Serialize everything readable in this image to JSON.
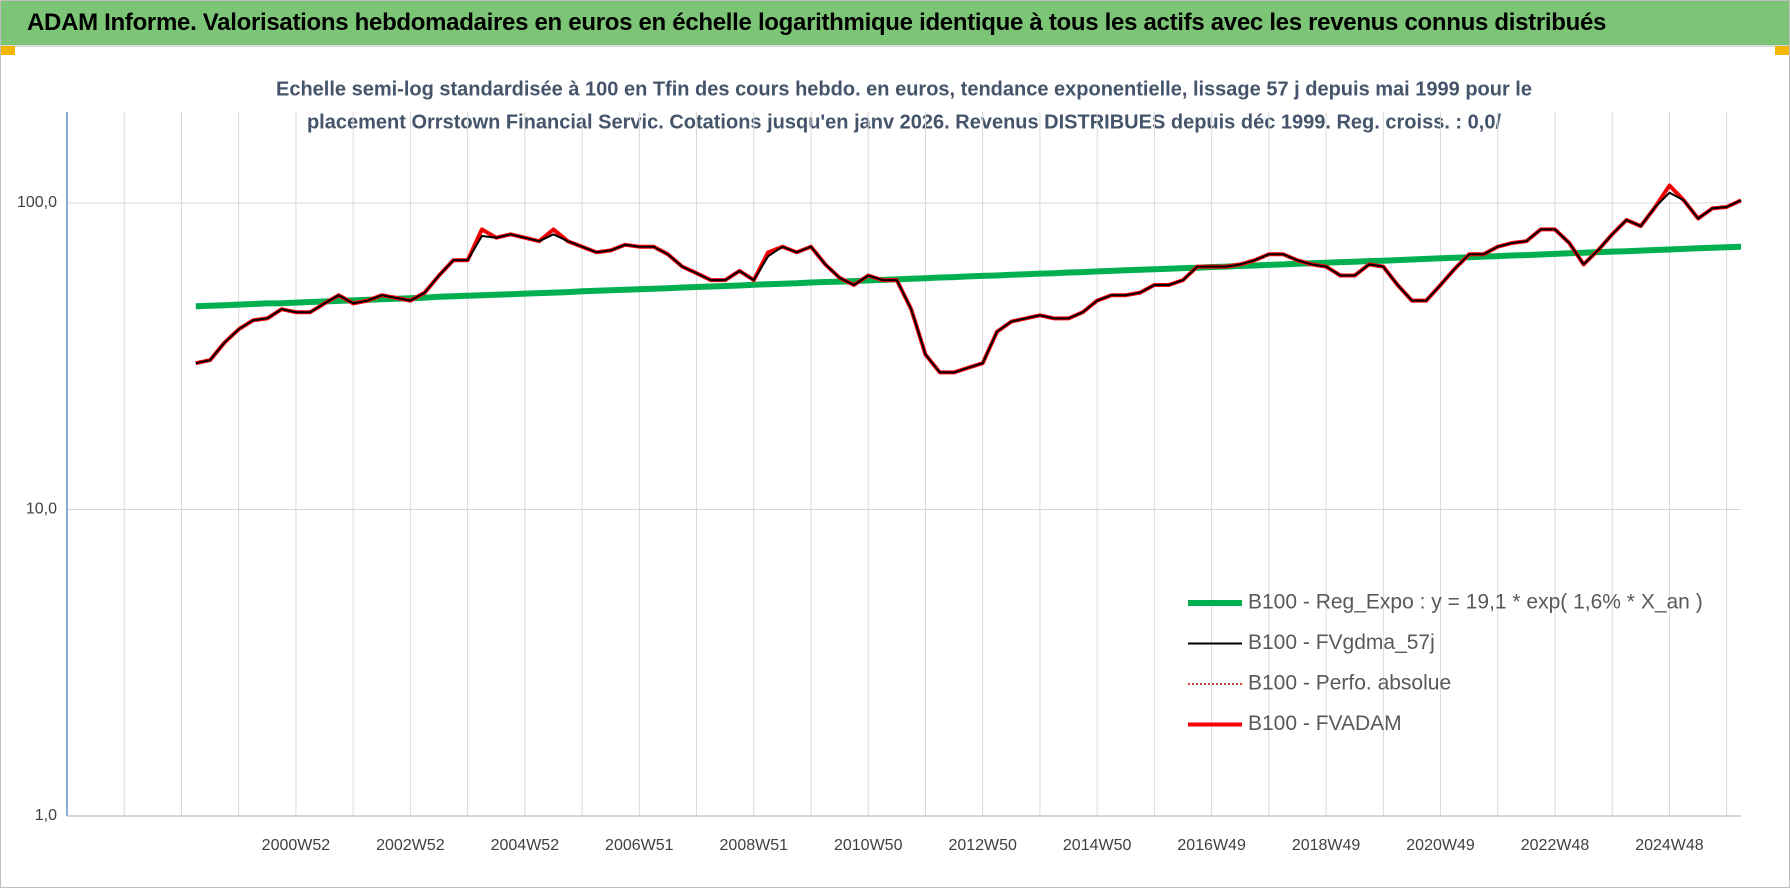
{
  "header": {
    "title": "ADAM Informe. Valorisations hebdomadaires en euros en échelle logarithmique identique à tous les actifs avec les revenus connus distribués"
  },
  "chart_data": {
    "type": "line",
    "title": [
      "Echelle semi-log standardisée à 100 en Tfin des cours hebdo. en euros, tendance exponentielle, lissage 57 j depuis mai 1999 pour le",
      "placement Orrstown Financial Servic.  Cotations jusqu'en janv 2026. Revenus DISTRIBUES depuis déc 1999.  Reg. croiss. : 0,0/"
    ],
    "categories": [
      null,
      null,
      null,
      null,
      null,
      null,
      null,
      null,
      null,
      null,
      null,
      null,
      null,
      null,
      null,
      null,
      "2000W52",
      null,
      null,
      null,
      null,
      null,
      null,
      null,
      "2002W52",
      null,
      null,
      null,
      null,
      null,
      null,
      null,
      "2004W52",
      null,
      null,
      null,
      null,
      null,
      null,
      null,
      "2006W51",
      null,
      null,
      null,
      null,
      null,
      null,
      null,
      "2008W51",
      null,
      null,
      null,
      null,
      null,
      null,
      null,
      "2010W50",
      null,
      null,
      null,
      null,
      null,
      null,
      null,
      "2012W50",
      null,
      null,
      null,
      null,
      null,
      null,
      null,
      "2014W50",
      null,
      null,
      null,
      null,
      null,
      null,
      null,
      "2016W49",
      null,
      null,
      null,
      null,
      null,
      null,
      null,
      "2018W49",
      null,
      null,
      null,
      null,
      null,
      null,
      null,
      "2020W49",
      null,
      null,
      null,
      null,
      null,
      null,
      null,
      "2022W48",
      null,
      null,
      null,
      null,
      null,
      null,
      null,
      "2024W48",
      null,
      null,
      null,
      null,
      null
    ],
    "log_scale": true,
    "ylim": [
      1,
      198
    ],
    "yticks": [
      {
        "value": 1,
        "label": "1,0"
      },
      {
        "value": 10,
        "label": "10,0"
      },
      {
        "value": 100,
        "label": "100,0"
      }
    ],
    "grid": true,
    "legend": "lower right",
    "series": [
      {
        "name": "B100 - Reg_Expo : y = 19,1 * exp( 1,6% *  X_an )",
        "color": "#00b050",
        "line_width": 6,
        "line_style": "solid",
        "values": [
          null,
          null,
          null,
          null,
          null,
          null,
          null,
          null,
          null,
          46.0,
          46.2,
          46.4,
          46.6,
          46.8,
          47.0,
          47.1,
          47.3,
          47.5,
          47.7,
          47.9,
          48.1,
          48.3,
          48.5,
          48.7,
          48.9,
          49.1,
          49.4,
          49.6,
          49.8,
          50.0,
          50.2,
          50.4,
          50.6,
          50.8,
          51.0,
          51.2,
          51.5,
          51.7,
          51.9,
          52.1,
          52.3,
          52.5,
          52.7,
          53.0,
          53.2,
          53.4,
          53.6,
          53.8,
          54.1,
          54.3,
          54.5,
          54.7,
          55.0,
          55.2,
          55.4,
          55.6,
          55.9,
          56.1,
          56.3,
          56.6,
          56.8,
          57.1,
          57.3,
          57.6,
          57.8,
          58.0,
          58.3,
          58.5,
          58.8,
          59.0,
          59.3,
          59.5,
          59.8,
          60.0,
          60.3,
          60.5,
          60.8,
          61.0,
          61.3,
          61.5,
          61.8,
          62.0,
          62.3,
          62.5,
          62.8,
          63.0,
          63.3,
          63.6,
          63.8,
          64.1,
          64.3,
          64.6,
          64.8,
          65.1,
          65.4,
          65.7,
          66.0,
          66.2,
          66.5,
          66.8,
          67.1,
          67.4,
          67.6,
          67.9,
          68.2,
          68.5,
          68.8,
          69.1,
          69.4,
          69.6,
          69.9,
          70.2,
          70.5,
          70.8,
          71.1,
          71.4,
          71.7,
          72.0
        ]
      },
      {
        "name": "B100 - FVgdma_57j",
        "color": "#000000",
        "line_width": 2,
        "line_style": "solid",
        "values": [
          null,
          null,
          null,
          null,
          null,
          null,
          null,
          null,
          null,
          30,
          30.7,
          35,
          38.7,
          41.4,
          42,
          45,
          44,
          44,
          47,
          50,
          47,
          48,
          50,
          49,
          48,
          51,
          58,
          65,
          65,
          78,
          77,
          79,
          77,
          75,
          79,
          75,
          72,
          69,
          70,
          73,
          72,
          72,
          68,
          62,
          59,
          56,
          56,
          60,
          56,
          67,
          72,
          69,
          72,
          63,
          57,
          54,
          58,
          56,
          56,
          45,
          32,
          28,
          28,
          29,
          30,
          38,
          41,
          42,
          43,
          42,
          42,
          44,
          48,
          50,
          50,
          51,
          54,
          54,
          56,
          62,
          62,
          62,
          63,
          65,
          68,
          68,
          65,
          63,
          62,
          58,
          58,
          63,
          62,
          54,
          48,
          48,
          54,
          61,
          68,
          68,
          72,
          74,
          75,
          82,
          82,
          74,
          63,
          70,
          79,
          88,
          84,
          97,
          108,
          102,
          89,
          96,
          97,
          102
        ]
      },
      {
        "name": "B100 - Perfo. absolue",
        "color": "#c00000",
        "line_width": 1.5,
        "line_style": "dotted",
        "values": [
          null,
          null,
          null,
          null,
          null,
          null,
          null,
          null,
          null,
          30,
          30.7,
          35,
          38.7,
          41.4,
          42,
          45,
          44,
          44,
          47,
          50,
          47,
          48,
          50,
          49,
          48,
          51,
          58,
          65,
          65,
          82,
          77,
          79,
          77,
          75,
          82,
          75,
          72,
          69,
          70,
          73,
          72,
          72,
          68,
          62,
          59,
          56,
          56,
          60,
          56,
          69,
          72,
          69,
          72,
          63,
          57,
          54,
          58,
          56,
          56,
          45,
          32,
          28,
          28,
          29,
          30,
          38,
          41,
          42,
          43,
          42,
          42,
          44,
          48,
          50,
          50,
          51,
          54,
          54,
          56,
          62,
          62,
          62,
          63,
          65,
          68,
          68,
          65,
          63,
          62,
          58,
          58,
          63,
          62,
          54,
          48,
          48,
          54,
          61,
          68,
          68,
          72,
          74,
          75,
          82,
          82,
          74,
          63,
          70,
          79,
          88,
          84,
          97,
          114,
          102,
          89,
          96,
          97,
          102
        ]
      },
      {
        "name": "B100 - FVADAM",
        "color": "#ff0000",
        "line_width": 4,
        "line_style": "solid",
        "values": [
          null,
          null,
          null,
          null,
          null,
          null,
          null,
          null,
          null,
          30,
          30.7,
          35,
          38.7,
          41.4,
          42,
          45,
          44,
          44,
          47,
          50,
          47,
          48,
          50,
          49,
          48,
          51,
          58,
          65,
          65,
          82,
          77,
          79,
          77,
          75,
          82,
          75,
          72,
          69,
          70,
          73,
          72,
          72,
          68,
          62,
          59,
          56,
          56,
          60,
          56,
          69,
          72,
          69,
          72,
          63,
          57,
          54,
          58,
          56,
          56,
          45,
          32,
          28,
          28,
          29,
          30,
          38,
          41,
          42,
          43,
          42,
          42,
          44,
          48,
          50,
          50,
          51,
          54,
          54,
          56,
          62,
          62,
          62,
          63,
          65,
          68,
          68,
          65,
          63,
          62,
          58,
          58,
          63,
          62,
          54,
          48,
          48,
          54,
          61,
          68,
          68,
          72,
          74,
          75,
          82,
          82,
          74,
          63,
          70,
          79,
          88,
          84,
          97,
          114,
          102,
          89,
          96,
          97,
          102
        ]
      }
    ]
  }
}
